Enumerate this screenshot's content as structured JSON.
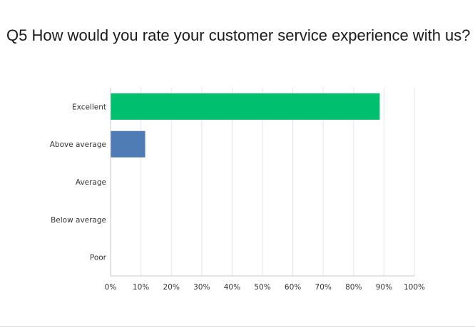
{
  "chart_data": {
    "type": "bar",
    "orientation": "horizontal",
    "title": "Q5 How would you rate your customer service experience with us?",
    "categories": [
      "Excellent",
      "Above average",
      "Average",
      "Below average",
      "Poor"
    ],
    "values": [
      88.6,
      11.4,
      0,
      0,
      0
    ],
    "bar_colors": [
      "#00bf6f",
      "#507cb6",
      "#507cb6",
      "#507cb6",
      "#507cb6"
    ],
    "xlim": [
      0,
      100
    ],
    "x_ticks": [
      0,
      10,
      20,
      30,
      40,
      50,
      60,
      70,
      80,
      90,
      100
    ],
    "x_tick_labels": [
      "0%",
      "10%",
      "20%",
      "30%",
      "40%",
      "50%",
      "60%",
      "70%",
      "80%",
      "90%",
      "100%"
    ],
    "grid": true,
    "legend": "none"
  }
}
